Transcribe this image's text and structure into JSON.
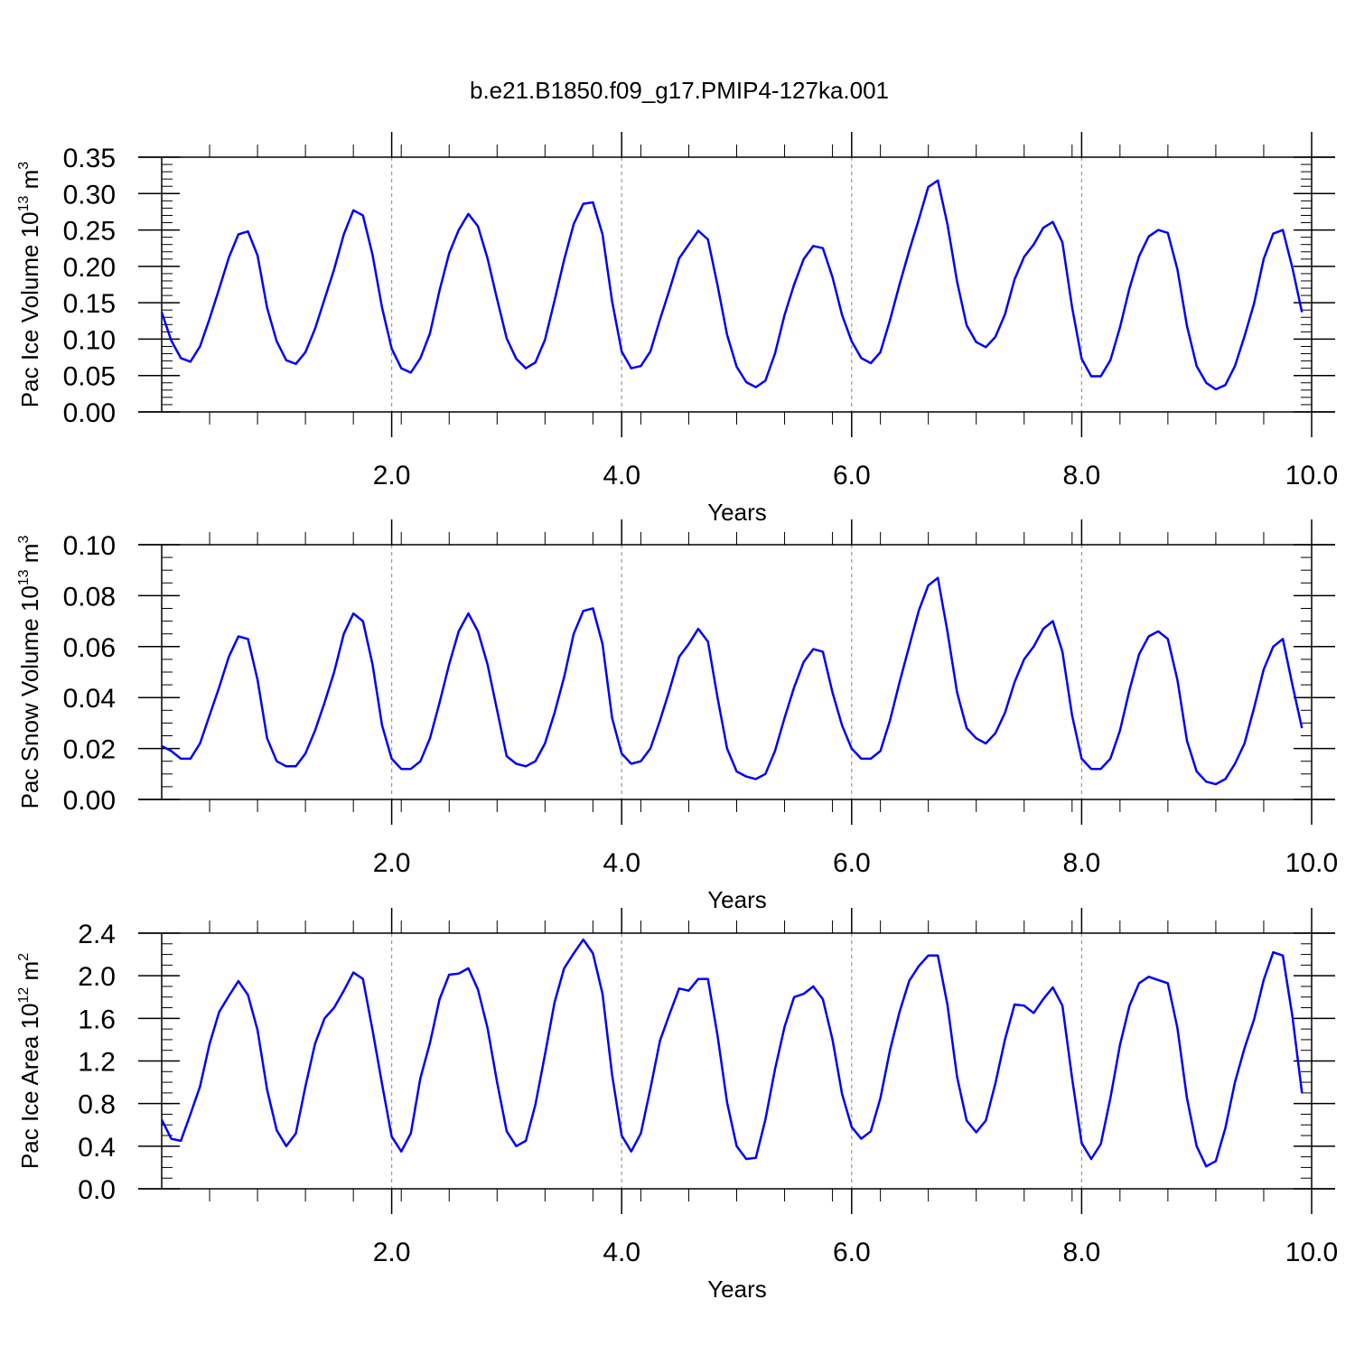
{
  "title": "b.e21.B1850.f09_g17.PMIP4-127ka.001",
  "colors": {
    "line": "#0000ff",
    "axis": "#000000",
    "gridline": "#999999"
  },
  "chart_data": [
    {
      "type": "line",
      "ylabel_main": "Pac Ice Volume 10",
      "ylabel_exp": "13",
      "ylabel_unit": " m",
      "ylabel_unit_exp": "3",
      "xlabel": "Years",
      "xlim": [
        0.0,
        10.0
      ],
      "ylim": [
        0.0,
        0.35
      ],
      "x_ticks": [
        2,
        4,
        6,
        8,
        10
      ],
      "x_tick_labels": [
        "2.0",
        "4.0",
        "6.0",
        "8.0",
        "10.0"
      ],
      "x_minor_ticks": [
        0.4167,
        0.8333,
        1.25,
        1.6667,
        2.0833,
        2.5,
        2.9167,
        3.3333,
        3.75,
        4.1667,
        4.5833,
        5.0,
        5.4167,
        5.8333,
        6.25,
        6.6667,
        7.0833,
        7.5,
        7.9167,
        8.3333,
        8.75,
        9.1667,
        9.5833
      ],
      "y_ticks": [
        0.0,
        0.05,
        0.1,
        0.15,
        0.2,
        0.25,
        0.3,
        0.35
      ],
      "y_tick_labels": [
        "0.00",
        "0.05",
        "0.10",
        "0.15",
        "0.20",
        "0.25",
        "0.30",
        "0.35"
      ],
      "y_minor_step": 0.01,
      "vgrid": [
        2,
        4,
        6,
        8
      ],
      "x_start": 0.0,
      "x_step": 0.08333,
      "values": [
        0.137,
        0.098,
        0.074,
        0.069,
        0.09,
        0.128,
        0.169,
        0.212,
        0.244,
        0.248,
        0.215,
        0.143,
        0.097,
        0.071,
        0.066,
        0.082,
        0.114,
        0.155,
        0.196,
        0.244,
        0.277,
        0.27,
        0.216,
        0.143,
        0.087,
        0.06,
        0.054,
        0.074,
        0.108,
        0.167,
        0.218,
        0.25,
        0.272,
        0.255,
        0.211,
        0.155,
        0.101,
        0.073,
        0.06,
        0.068,
        0.099,
        0.153,
        0.209,
        0.258,
        0.286,
        0.288,
        0.244,
        0.152,
        0.083,
        0.06,
        0.063,
        0.083,
        0.127,
        0.168,
        0.211,
        0.23,
        0.249,
        0.237,
        0.174,
        0.106,
        0.062,
        0.041,
        0.034,
        0.043,
        0.08,
        0.133,
        0.175,
        0.21,
        0.228,
        0.225,
        0.185,
        0.133,
        0.097,
        0.074,
        0.067,
        0.082,
        0.126,
        0.175,
        0.221,
        0.264,
        0.309,
        0.318,
        0.258,
        0.179,
        0.119,
        0.096,
        0.089,
        0.103,
        0.134,
        0.182,
        0.213,
        0.23,
        0.253,
        0.261,
        0.233,
        0.144,
        0.073,
        0.049,
        0.049,
        0.071,
        0.116,
        0.17,
        0.214,
        0.241,
        0.25,
        0.246,
        0.196,
        0.118,
        0.063,
        0.04,
        0.031,
        0.037,
        0.063,
        0.104,
        0.149,
        0.21,
        0.245,
        0.25,
        0.198,
        0.137
      ]
    },
    {
      "type": "line",
      "ylabel_main": "Pac Snow Volume 10",
      "ylabel_exp": "13",
      "ylabel_unit": " m",
      "ylabel_unit_exp": "3",
      "xlabel": "Years",
      "xlim": [
        0.0,
        10.0
      ],
      "ylim": [
        0.0,
        0.1
      ],
      "x_ticks": [
        2,
        4,
        6,
        8,
        10
      ],
      "x_tick_labels": [
        "2.0",
        "4.0",
        "6.0",
        "8.0",
        "10.0"
      ],
      "x_minor_ticks": [
        0.4167,
        0.8333,
        1.25,
        1.6667,
        2.0833,
        2.5,
        2.9167,
        3.3333,
        3.75,
        4.1667,
        4.5833,
        5.0,
        5.4167,
        5.8333,
        6.25,
        6.6667,
        7.0833,
        7.5,
        7.9167,
        8.3333,
        8.75,
        9.1667,
        9.5833
      ],
      "y_ticks": [
        0.0,
        0.02,
        0.04,
        0.06,
        0.08,
        0.1
      ],
      "y_tick_labels": [
        "0.00",
        "0.02",
        "0.04",
        "0.06",
        "0.08",
        "0.10"
      ],
      "y_minor_step": 0.005,
      "vgrid": [
        2,
        4,
        6,
        8
      ],
      "x_start": 0.0,
      "x_step": 0.08333,
      "values": [
        0.021,
        0.019,
        0.016,
        0.016,
        0.022,
        0.033,
        0.044,
        0.056,
        0.064,
        0.063,
        0.047,
        0.024,
        0.015,
        0.013,
        0.013,
        0.018,
        0.027,
        0.038,
        0.05,
        0.065,
        0.073,
        0.07,
        0.053,
        0.029,
        0.016,
        0.012,
        0.012,
        0.015,
        0.024,
        0.038,
        0.053,
        0.066,
        0.073,
        0.066,
        0.053,
        0.035,
        0.017,
        0.014,
        0.013,
        0.015,
        0.022,
        0.034,
        0.048,
        0.065,
        0.074,
        0.075,
        0.061,
        0.032,
        0.018,
        0.014,
        0.015,
        0.02,
        0.031,
        0.043,
        0.056,
        0.061,
        0.067,
        0.062,
        0.04,
        0.02,
        0.011,
        0.009,
        0.008,
        0.01,
        0.019,
        0.032,
        0.044,
        0.054,
        0.059,
        0.058,
        0.042,
        0.029,
        0.02,
        0.016,
        0.016,
        0.019,
        0.031,
        0.046,
        0.06,
        0.074,
        0.084,
        0.087,
        0.066,
        0.042,
        0.028,
        0.024,
        0.022,
        0.026,
        0.034,
        0.046,
        0.055,
        0.06,
        0.067,
        0.07,
        0.058,
        0.033,
        0.016,
        0.012,
        0.012,
        0.016,
        0.027,
        0.043,
        0.057,
        0.064,
        0.066,
        0.063,
        0.047,
        0.023,
        0.011,
        0.007,
        0.006,
        0.008,
        0.014,
        0.022,
        0.036,
        0.051,
        0.06,
        0.063,
        0.045,
        0.028
      ]
    },
    {
      "type": "line",
      "ylabel_main": "Pac Ice Area 10",
      "ylabel_exp": "12",
      "ylabel_unit": " m",
      "ylabel_unit_exp": "2",
      "xlabel": "Years",
      "xlim": [
        0.0,
        10.0
      ],
      "ylim": [
        0.0,
        2.4
      ],
      "x_ticks": [
        2,
        4,
        6,
        8,
        10
      ],
      "x_tick_labels": [
        "2.0",
        "4.0",
        "6.0",
        "8.0",
        "10.0"
      ],
      "x_minor_ticks": [
        0.4167,
        0.8333,
        1.25,
        1.6667,
        2.0833,
        2.5,
        2.9167,
        3.3333,
        3.75,
        4.1667,
        4.5833,
        5.0,
        5.4167,
        5.8333,
        6.25,
        6.6667,
        7.0833,
        7.5,
        7.9167,
        8.3333,
        8.75,
        9.1667,
        9.5833
      ],
      "y_ticks": [
        0.0,
        0.4,
        0.8,
        1.2,
        1.6,
        2.0,
        2.4
      ],
      "y_tick_labels": [
        "0.0",
        "0.4",
        "0.8",
        "1.2",
        "1.6",
        "2.0",
        "2.4"
      ],
      "y_minor_step": 0.1,
      "vgrid": [
        2,
        4,
        6,
        8
      ],
      "x_start": 0.0,
      "x_step": 0.08333,
      "values": [
        0.65,
        0.47,
        0.45,
        0.7,
        0.96,
        1.36,
        1.66,
        1.81,
        1.95,
        1.82,
        1.49,
        0.93,
        0.55,
        0.4,
        0.52,
        0.96,
        1.36,
        1.6,
        1.7,
        1.86,
        2.03,
        1.97,
        1.49,
        0.98,
        0.49,
        0.35,
        0.52,
        1.04,
        1.37,
        1.78,
        2.01,
        2.02,
        2.07,
        1.87,
        1.51,
        1.0,
        0.54,
        0.4,
        0.45,
        0.79,
        1.26,
        1.75,
        2.07,
        2.21,
        2.34,
        2.21,
        1.83,
        1.07,
        0.5,
        0.35,
        0.52,
        0.94,
        1.39,
        1.64,
        1.88,
        1.86,
        1.97,
        1.97,
        1.44,
        0.81,
        0.4,
        0.28,
        0.29,
        0.65,
        1.12,
        1.52,
        1.8,
        1.83,
        1.9,
        1.78,
        1.4,
        0.89,
        0.58,
        0.47,
        0.54,
        0.85,
        1.3,
        1.66,
        1.95,
        2.09,
        2.19,
        2.19,
        1.73,
        1.05,
        0.64,
        0.53,
        0.64,
        0.99,
        1.4,
        1.73,
        1.72,
        1.65,
        1.78,
        1.89,
        1.72,
        1.04,
        0.43,
        0.28,
        0.42,
        0.85,
        1.35,
        1.72,
        1.93,
        1.99,
        1.96,
        1.93,
        1.51,
        0.85,
        0.4,
        0.21,
        0.26,
        0.57,
        1.0,
        1.32,
        1.59,
        1.96,
        2.22,
        2.19,
        1.62,
        0.9
      ]
    }
  ]
}
